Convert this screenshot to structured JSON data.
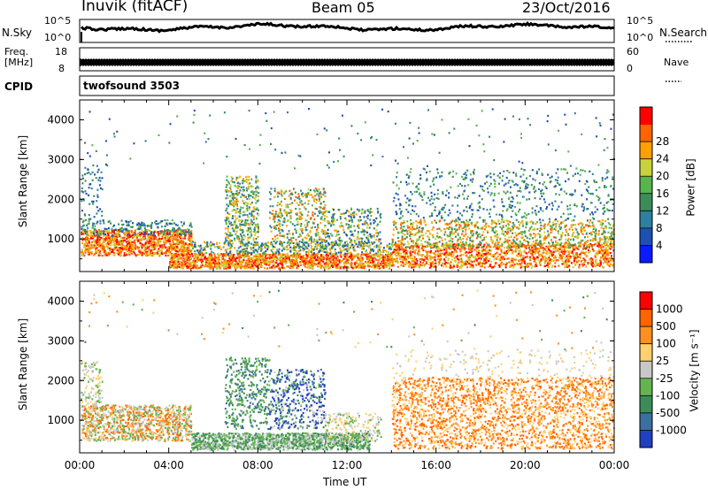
{
  "header": {
    "station": "Inuvik (fitACF)",
    "beam": "Beam 05",
    "date": "23/Oct/2016"
  },
  "noise_panel": {
    "left_label": "N.Sky",
    "right_label": "N.Search",
    "left_ticks": [
      "10^5",
      "10^0"
    ],
    "right_ticks": [
      "10^5",
      "10^0"
    ]
  },
  "freq_panel": {
    "left_label_line1": "Freq.",
    "left_label_line2": "[MHz]",
    "right_label": "Nave",
    "left_ticks": [
      "18",
      "8"
    ],
    "right_ticks": [
      "60",
      "0"
    ]
  },
  "cpid_panel": {
    "label": "CPID",
    "program": "twofsound 3503"
  },
  "colors": {
    "power_scale": [
      "#0a1cff",
      "#1e50b4",
      "#2f7fa0",
      "#3c8c5a",
      "#58b44c",
      "#c8d23c",
      "#ffa000",
      "#ff6400",
      "#ff0000"
    ],
    "velocity_scale": [
      "#2040c0",
      "#3a70a0",
      "#3c8c5a",
      "#64b450",
      "#c8c8c8",
      "#ffd070",
      "#ff9020",
      "#ff6400",
      "#ff0000"
    ]
  },
  "chart_data": [
    {
      "type": "heatmap",
      "title": "",
      "quantity": "Power",
      "xlabel": "",
      "ylabel": "Slant Range [km]",
      "x_range_hours": [
        0,
        24
      ],
      "ylim": [
        180,
        4500
      ],
      "yticks": [
        "1000",
        "2000",
        "3000",
        "4000"
      ],
      "colorbar_label": "Power [dB]",
      "colorbar_ticks": [
        "4",
        "8",
        "12",
        "16",
        "20",
        "24",
        "28"
      ],
      "colorbar_range": [
        0,
        30
      ],
      "summary_bands": [
        {
          "time": "00:00-05:00",
          "range_km": [
            600,
            1200
          ],
          "dominant": "high power (red/orange)"
        },
        {
          "time": "05:00-14:00",
          "range_km": [
            300,
            600
          ],
          "dominant": "high power (red/orange)"
        },
        {
          "time": "06:30-13:00",
          "range_km": [
            800,
            2600
          ],
          "dominant": "moderate power (green/orange)"
        },
        {
          "time": "14:00-24:00",
          "range_km": [
            400,
            1400
          ],
          "dominant": "high power (orange/red)"
        },
        {
          "time": "14:00-24:00",
          "range_km": [
            1500,
            2700
          ],
          "dominant": "low-moderate power (blue/green)"
        }
      ]
    },
    {
      "type": "heatmap",
      "title": "",
      "quantity": "Velocity",
      "xlabel": "Time UT",
      "ylabel": "Slant Range [km]",
      "x_range_hours": [
        0,
        24
      ],
      "xticks": [
        "00:00",
        "04:00",
        "08:00",
        "12:00",
        "16:00",
        "20:00",
        "00:00"
      ],
      "ylim": [
        180,
        4500
      ],
      "yticks": [
        "1000",
        "2000",
        "3000",
        "4000"
      ],
      "colorbar_label": "Velocity [m s⁻¹]",
      "colorbar_ticks": [
        "1000",
        "500",
        "100",
        "25",
        "-25",
        "-100",
        "-500",
        "-1000"
      ],
      "summary_bands": [
        {
          "time": "00:00-05:00",
          "range_km": [
            500,
            1400
          ],
          "dominant": "low positive (green/orange mix)"
        },
        {
          "time": "05:00-13:00",
          "range_km": [
            300,
            700
          ],
          "dominant": "positive (green)"
        },
        {
          "time": "06:30-11:00",
          "range_km": [
            800,
            2600
          ],
          "dominant": "positive (green/blue)"
        },
        {
          "time": "14:00-24:00",
          "range_km": [
            300,
            2100
          ],
          "dominant": "negative (orange)"
        }
      ]
    }
  ]
}
